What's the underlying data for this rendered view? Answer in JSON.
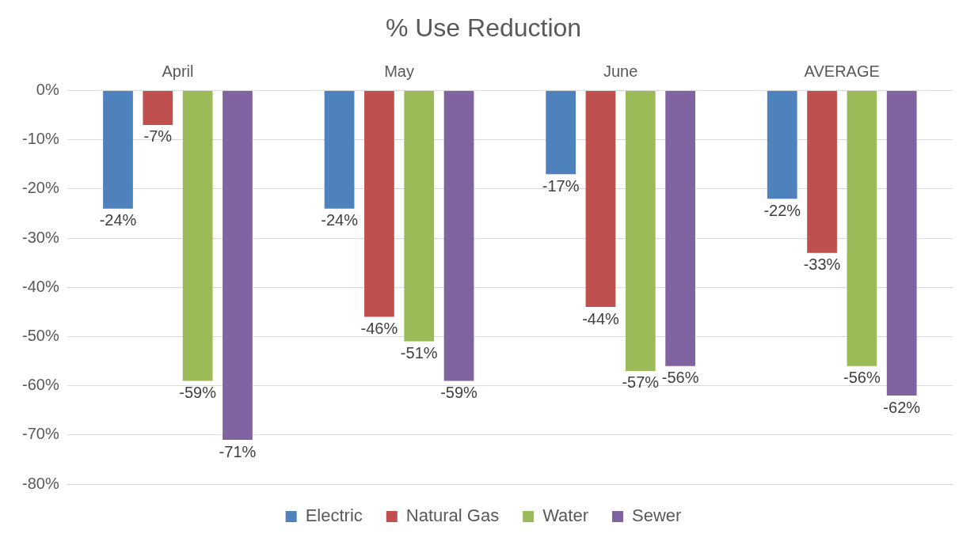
{
  "chart_data": {
    "type": "bar",
    "title": "% Use Reduction",
    "categories": [
      "April",
      "May",
      "June",
      "AVERAGE"
    ],
    "series": [
      {
        "name": "Electric",
        "color": "#4f81bd",
        "values": [
          -24,
          -24,
          -17,
          -22
        ],
        "value_labels": [
          "-24%",
          "-24%",
          "-17%",
          "-22%"
        ]
      },
      {
        "name": "Natural Gas",
        "color": "#c0504d",
        "values": [
          -7,
          -46,
          -44,
          -33
        ],
        "value_labels": [
          "-7%",
          "-46%",
          "-44%",
          "-33%"
        ]
      },
      {
        "name": "Water",
        "color": "#9bbb59",
        "values": [
          -59,
          -51,
          -57,
          -56
        ],
        "value_labels": [
          "-59%",
          "-51%",
          "-57%",
          "-56%"
        ]
      },
      {
        "name": "Sewer",
        "color": "#8064a2",
        "values": [
          -71,
          -59,
          -56,
          -62
        ],
        "value_labels": [
          "-71%",
          "-59%",
          "-56%",
          "-62%"
        ]
      }
    ],
    "ylim": [
      -80,
      0
    ],
    "yticks": [
      {
        "value": 0,
        "label": "0%"
      },
      {
        "value": -10,
        "label": "-10%"
      },
      {
        "value": -20,
        "label": "-20%"
      },
      {
        "value": -30,
        "label": "-30%"
      },
      {
        "value": -40,
        "label": "-40%"
      },
      {
        "value": -50,
        "label": "-50%"
      },
      {
        "value": -60,
        "label": "-60%"
      },
      {
        "value": -70,
        "label": "-70%"
      },
      {
        "value": -80,
        "label": "-80%"
      }
    ],
    "grid": "y",
    "legend": "bottom"
  }
}
